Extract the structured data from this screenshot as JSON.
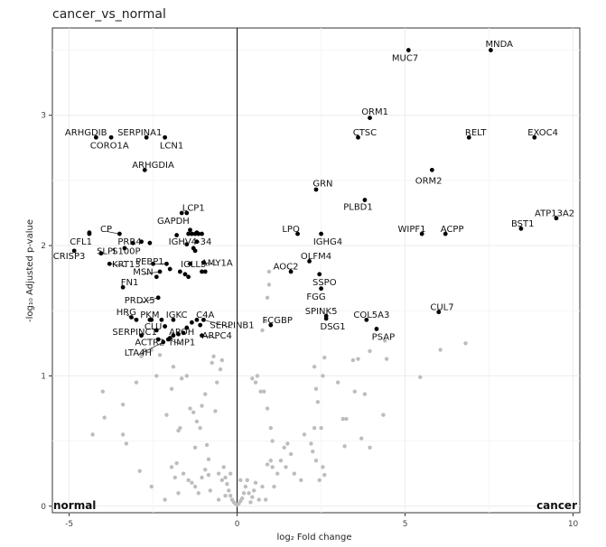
{
  "chart_data": {
    "type": "scatter",
    "title": "cancer_vs_normal",
    "xlabel": "log₂ Fold change",
    "ylabel": "-log₁₀ Adjusted p-value",
    "xlim": [
      -5.5,
      10.2
    ],
    "ylim": [
      -0.05,
      3.67
    ],
    "x_ticks": [
      -5,
      0,
      5,
      10
    ],
    "y_ticks": [
      0,
      1,
      2,
      3
    ],
    "grid": true,
    "corner_labels": {
      "left": "normal",
      "right": "cancer"
    },
    "colors": {
      "significant": "#000000",
      "non_significant": "#bdbdbd",
      "vline": "#000000"
    },
    "labeled_points": [
      {
        "gene": "MNDA",
        "x": 7.55,
        "y": 3.5,
        "lx": 7.8,
        "ly": 3.55
      },
      {
        "gene": "MUC7",
        "x": 5.1,
        "y": 3.5,
        "lx": 5.0,
        "ly": 3.44
      },
      {
        "gene": "ORM1",
        "x": 3.95,
        "y": 2.98,
        "lx": 4.1,
        "ly": 3.03
      },
      {
        "gene": "CTSC",
        "x": 3.6,
        "y": 2.83,
        "lx": 3.8,
        "ly": 2.87
      },
      {
        "gene": "RELT",
        "x": 6.9,
        "y": 2.83,
        "lx": 7.1,
        "ly": 2.87
      },
      {
        "gene": "EXOC4",
        "x": 8.85,
        "y": 2.83,
        "lx": 9.1,
        "ly": 2.87
      },
      {
        "gene": "ORM2",
        "x": 5.8,
        "y": 2.58,
        "lx": 5.7,
        "ly": 2.5
      },
      {
        "gene": "GRN",
        "x": 2.35,
        "y": 2.43,
        "lx": 2.55,
        "ly": 2.48
      },
      {
        "gene": "PLBD1",
        "x": 3.8,
        "y": 2.35,
        "lx": 3.6,
        "ly": 2.3
      },
      {
        "gene": "ATP13A2",
        "x": 9.5,
        "y": 2.21,
        "lx": 9.45,
        "ly": 2.25
      },
      {
        "gene": "BST1",
        "x": 8.45,
        "y": 2.13,
        "lx": 8.5,
        "ly": 2.17
      },
      {
        "gene": "WIPF1",
        "x": 5.5,
        "y": 2.09,
        "lx": 5.2,
        "ly": 2.13
      },
      {
        "gene": "ACPP",
        "x": 6.2,
        "y": 2.09,
        "lx": 6.4,
        "ly": 2.13
      },
      {
        "gene": "LPQ",
        "x": 1.8,
        "y": 2.09,
        "lx": 1.6,
        "ly": 2.13
      },
      {
        "gene": "IGHG4",
        "x": 2.5,
        "y": 2.09,
        "lx": 2.7,
        "ly": 2.03
      },
      {
        "gene": "OLFM4",
        "x": 2.15,
        "y": 1.88,
        "lx": 2.35,
        "ly": 1.92
      },
      {
        "gene": "AOC2",
        "x": 1.6,
        "y": 1.8,
        "lx": 1.45,
        "ly": 1.84
      },
      {
        "gene": "SSPO",
        "x": 2.45,
        "y": 1.78,
        "lx": 2.6,
        "ly": 1.72
      },
      {
        "gene": "FGG",
        "x": 2.5,
        "y": 1.67,
        "lx": 2.35,
        "ly": 1.61
      },
      {
        "gene": "SPINK5",
        "x": 2.65,
        "y": 1.46,
        "lx": 2.5,
        "ly": 1.5
      },
      {
        "gene": "DSG1",
        "x": 2.65,
        "y": 1.44,
        "lx": 2.85,
        "ly": 1.38
      },
      {
        "gene": "COL5A3",
        "x": 3.85,
        "y": 1.43,
        "lx": 4.0,
        "ly": 1.47
      },
      {
        "gene": "CUL7",
        "x": 6.0,
        "y": 1.49,
        "lx": 6.1,
        "ly": 1.53
      },
      {
        "gene": "PSAP",
        "x": 4.15,
        "y": 1.36,
        "lx": 4.35,
        "ly": 1.3
      },
      {
        "gene": "FCGBP",
        "x": 1.0,
        "y": 1.39,
        "lx": 1.2,
        "ly": 1.43
      },
      {
        "gene": "ARHGDIB",
        "x": -4.2,
        "y": 2.83,
        "lx": -4.5,
        "ly": 2.87
      },
      {
        "gene": "SERPINA1",
        "x": -2.7,
        "y": 2.83,
        "lx": -2.9,
        "ly": 2.87
      },
      {
        "gene": "CORO1A",
        "x": -3.75,
        "y": 2.83,
        "lx": -3.8,
        "ly": 2.77
      },
      {
        "gene": "LCN1",
        "x": -2.15,
        "y": 2.83,
        "lx": -1.95,
        "ly": 2.77
      },
      {
        "gene": "ARHGDIA",
        "x": -2.75,
        "y": 2.58,
        "lx": -2.5,
        "ly": 2.62
      },
      {
        "gene": "LCP1",
        "x": -1.5,
        "y": 2.25,
        "lx": -1.3,
        "ly": 2.29
      },
      {
        "gene": "GAPDH",
        "x": -1.65,
        "y": 2.25,
        "lx": -1.9,
        "ly": 2.19
      },
      {
        "gene": "CP",
        "x": -3.5,
        "y": 2.09,
        "lx": -3.9,
        "ly": 2.13
      },
      {
        "gene": "CFL1",
        "x": -4.4,
        "y": 2.09,
        "lx": -4.65,
        "ly": 2.03
      },
      {
        "gene": "PRR4",
        "x": -2.85,
        "y": 2.03,
        "lx": -3.2,
        "ly": 2.03
      },
      {
        "gene": "IGHV4-34",
        "x": -1.2,
        "y": 2.03,
        "lx": -1.4,
        "ly": 2.03
      },
      {
        "gene": "CRISP3",
        "x": -4.85,
        "y": 1.96,
        "lx": -5.0,
        "ly": 1.92
      },
      {
        "gene": "SLPI",
        "x": -4.05,
        "y": 1.94,
        "lx": -3.9,
        "ly": 1.96
      },
      {
        "gene": "S100P",
        "x": -3.35,
        "y": 1.98,
        "lx": -3.3,
        "ly": 1.96
      },
      {
        "gene": "KRT13",
        "x": -3.8,
        "y": 1.86,
        "lx": -3.3,
        "ly": 1.86
      },
      {
        "gene": "PEBP1",
        "x": -2.1,
        "y": 1.86,
        "lx": -2.6,
        "ly": 1.88
      },
      {
        "gene": "MSN",
        "x": -2.3,
        "y": 1.8,
        "lx": -2.8,
        "ly": 1.8
      },
      {
        "gene": "IGLL5",
        "x": -1.4,
        "y": 1.86,
        "lx": -1.3,
        "ly": 1.86
      },
      {
        "gene": "AMY1A",
        "x": -1.0,
        "y": 1.87,
        "lx": -0.6,
        "ly": 1.87
      },
      {
        "gene": "FN1",
        "x": -3.4,
        "y": 1.68,
        "lx": -3.2,
        "ly": 1.72
      },
      {
        "gene": "PRDX5",
        "x": -2.35,
        "y": 1.6,
        "lx": -2.9,
        "ly": 1.58
      },
      {
        "gene": "HRG",
        "x": -3.0,
        "y": 1.43,
        "lx": -3.3,
        "ly": 1.49
      },
      {
        "gene": "PKM",
        "x": -2.55,
        "y": 1.43,
        "lx": -2.6,
        "ly": 1.47
      },
      {
        "gene": "IGKC",
        "x": -1.9,
        "y": 1.43,
        "lx": -1.8,
        "ly": 1.47
      },
      {
        "gene": "C4A",
        "x": -1.2,
        "y": 1.43,
        "lx": -0.95,
        "ly": 1.47
      },
      {
        "gene": "SERPINB1",
        "x": -1.0,
        "y": 1.43,
        "lx": -0.15,
        "ly": 1.39
      },
      {
        "gene": "CLU",
        "x": -2.15,
        "y": 1.38,
        "lx": -2.5,
        "ly": 1.38
      },
      {
        "gene": "APOH",
        "x": -1.5,
        "y": 1.37,
        "lx": -1.65,
        "ly": 1.34
      },
      {
        "gene": "SERPINC1",
        "x": -2.85,
        "y": 1.31,
        "lx": -3.05,
        "ly": 1.34
      },
      {
        "gene": "ARPC4",
        "x": -1.05,
        "y": 1.31,
        "lx": -0.6,
        "ly": 1.31
      },
      {
        "gene": "ACTR2",
        "x": -2.35,
        "y": 1.28,
        "lx": -2.6,
        "ly": 1.26
      },
      {
        "gene": "TIMP1",
        "x": -2.05,
        "y": 1.28,
        "lx": -1.65,
        "ly": 1.26
      },
      {
        "gene": "LTA4H",
        "x": -2.2,
        "y": 1.26,
        "lx": -2.95,
        "ly": 1.18
      }
    ],
    "other_significant": [
      [
        -1.45,
        2.09
      ],
      [
        -1.35,
        2.09
      ],
      [
        -1.25,
        2.09
      ],
      [
        -1.15,
        2.09
      ],
      [
        -1.05,
        2.09
      ],
      [
        -1.4,
        2.12
      ],
      [
        -1.2,
        2.1
      ],
      [
        -1.3,
        1.98
      ],
      [
        -1.25,
        1.96
      ],
      [
        -1.7,
        1.8
      ],
      [
        -2.0,
        1.82
      ],
      [
        -1.55,
        1.78
      ],
      [
        -1.45,
        1.76
      ],
      [
        -1.05,
        1.8
      ],
      [
        -0.95,
        1.8
      ],
      [
        -1.8,
        2.08
      ],
      [
        -2.4,
        1.76
      ],
      [
        -2.5,
        1.86
      ],
      [
        -3.15,
        1.45
      ],
      [
        -2.25,
        1.43
      ],
      [
        -2.4,
        1.35
      ],
      [
        -1.9,
        1.31
      ],
      [
        -1.75,
        1.32
      ],
      [
        -1.6,
        1.33
      ],
      [
        -1.35,
        1.41
      ],
      [
        -1.1,
        1.39
      ],
      [
        -2.6,
        1.43
      ],
      [
        -2.0,
        1.29
      ],
      [
        -3.1,
        2.02
      ],
      [
        -4.4,
        2.1
      ],
      [
        -1.5,
        2.01
      ],
      [
        -2.6,
        2.02
      ]
    ],
    "non_significant": [
      [
        -4.3,
        0.55
      ],
      [
        -3.95,
        0.68
      ],
      [
        -4.0,
        0.88
      ],
      [
        -3.4,
        0.78
      ],
      [
        -3.3,
        0.48
      ],
      [
        -2.9,
        0.27
      ],
      [
        -3.0,
        0.95
      ],
      [
        -2.75,
        1.2
      ],
      [
        -2.85,
        1.15
      ],
      [
        -2.55,
        1.2
      ],
      [
        -2.4,
        1.0
      ],
      [
        -2.3,
        1.16
      ],
      [
        -2.1,
        0.7
      ],
      [
        -1.95,
        0.9
      ],
      [
        -1.9,
        1.07
      ],
      [
        -1.8,
        0.33
      ],
      [
        -1.75,
        0.58
      ],
      [
        -1.7,
        0.6
      ],
      [
        -1.65,
        0.98
      ],
      [
        -1.5,
        1.0
      ],
      [
        -1.4,
        0.75
      ],
      [
        -1.3,
        0.72
      ],
      [
        -1.25,
        0.45
      ],
      [
        -1.2,
        0.65
      ],
      [
        -1.1,
        0.6
      ],
      [
        -1.05,
        0.77
      ],
      [
        -0.95,
        0.86
      ],
      [
        -0.9,
        0.47
      ],
      [
        -0.85,
        0.36
      ],
      [
        -0.75,
        1.1
      ],
      [
        -0.7,
        1.15
      ],
      [
        -0.65,
        0.73
      ],
      [
        -0.6,
        0.95
      ],
      [
        -0.5,
        1.05
      ],
      [
        -0.45,
        1.12
      ],
      [
        -0.4,
        0.3
      ],
      [
        -0.35,
        0.22
      ],
      [
        -0.3,
        0.17
      ],
      [
        -0.25,
        0.12
      ],
      [
        -0.2,
        0.08
      ],
      [
        -0.15,
        0.05
      ],
      [
        -0.1,
        0.03
      ],
      [
        -0.05,
        0.02
      ],
      [
        0.0,
        0.01
      ],
      [
        0.05,
        0.02
      ],
      [
        0.1,
        0.04
      ],
      [
        0.15,
        0.06
      ],
      [
        0.2,
        0.1
      ],
      [
        0.25,
        0.15
      ],
      [
        0.3,
        0.2
      ],
      [
        -1.95,
        0.3
      ],
      [
        -1.85,
        0.22
      ],
      [
        -1.6,
        0.25
      ],
      [
        -1.45,
        0.2
      ],
      [
        -1.35,
        0.18
      ],
      [
        -1.25,
        0.15
      ],
      [
        -1.15,
        0.1
      ],
      [
        -0.8,
        0.12
      ],
      [
        -0.55,
        0.05
      ],
      [
        -1.05,
        0.22
      ],
      [
        -0.95,
        0.28
      ],
      [
        -0.85,
        0.24
      ],
      [
        -0.55,
        0.25
      ],
      [
        -0.45,
        0.2
      ],
      [
        -0.35,
        0.08
      ],
      [
        0.35,
        0.1
      ],
      [
        0.4,
        0.03
      ],
      [
        0.45,
        0.07
      ],
      [
        0.5,
        0.12
      ],
      [
        0.55,
        0.18
      ],
      [
        0.65,
        0.05
      ],
      [
        0.75,
        0.15
      ],
      [
        0.85,
        0.05
      ],
      [
        0.9,
        0.32
      ],
      [
        1.0,
        0.35
      ],
      [
        1.05,
        0.3
      ],
      [
        1.1,
        0.15
      ],
      [
        1.2,
        0.25
      ],
      [
        1.3,
        0.35
      ],
      [
        1.4,
        0.45
      ],
      [
        1.45,
        0.3
      ],
      [
        1.5,
        0.48
      ],
      [
        1.6,
        0.4
      ],
      [
        1.7,
        0.25
      ],
      [
        1.9,
        0.2
      ],
      [
        2.0,
        0.55
      ],
      [
        2.2,
        0.48
      ],
      [
        2.25,
        0.42
      ],
      [
        2.3,
        0.6
      ],
      [
        2.35,
        0.35
      ],
      [
        2.45,
        0.2
      ],
      [
        2.55,
        0.3
      ],
      [
        2.6,
        0.24
      ],
      [
        0.45,
        0.98
      ],
      [
        0.55,
        0.95
      ],
      [
        0.7,
        0.88
      ],
      [
        0.8,
        0.88
      ],
      [
        0.9,
        0.75
      ],
      [
        1.0,
        0.6
      ],
      [
        1.05,
        0.5
      ],
      [
        0.6,
        1.0
      ],
      [
        0.95,
        1.8
      ],
      [
        0.95,
        1.7
      ],
      [
        0.9,
        1.6
      ],
      [
        0.85,
        1.42
      ],
      [
        0.75,
        1.35
      ],
      [
        2.4,
        0.8
      ],
      [
        2.5,
        0.6
      ],
      [
        2.35,
        0.9
      ],
      [
        2.3,
        1.07
      ],
      [
        2.6,
        1.14
      ],
      [
        2.55,
        1.0
      ],
      [
        3.0,
        0.95
      ],
      [
        3.15,
        0.67
      ],
      [
        3.25,
        0.67
      ],
      [
        3.2,
        0.46
      ],
      [
        3.5,
        0.88
      ],
      [
        3.6,
        1.13
      ],
      [
        3.7,
        0.52
      ],
      [
        3.8,
        0.86
      ],
      [
        3.95,
        1.19
      ],
      [
        3.95,
        0.45
      ],
      [
        4.35,
        0.7
      ],
      [
        4.45,
        1.13
      ],
      [
        4.4,
        1.27
      ],
      [
        5.45,
        0.99
      ],
      [
        6.05,
        1.2
      ],
      [
        6.8,
        1.25
      ],
      [
        3.45,
        1.12
      ],
      [
        -3.4,
        0.55
      ],
      [
        -2.55,
        0.15
      ],
      [
        -2.15,
        0.05
      ],
      [
        -1.75,
        0.1
      ],
      [
        -0.2,
        0.25
      ],
      [
        0.1,
        0.2
      ]
    ]
  }
}
